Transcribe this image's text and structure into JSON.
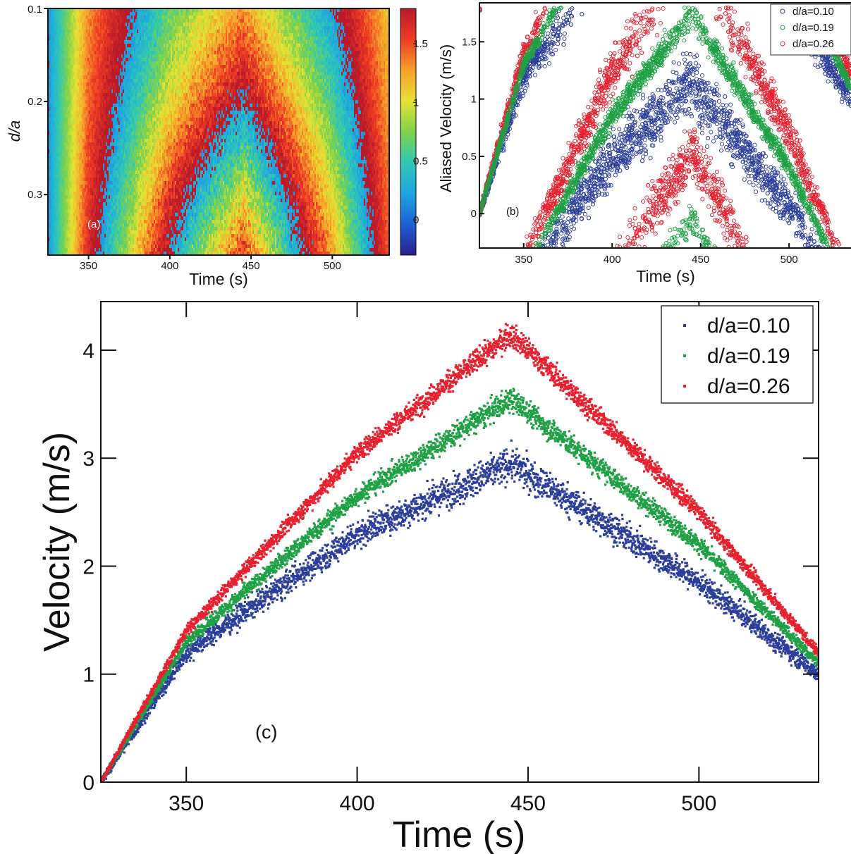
{
  "chart_data": [
    {
      "panel": "a",
      "type": "heatmap",
      "panel_label": "(a)",
      "xlabel": "Time (s)",
      "ylabel": "d/a",
      "xlim": [
        325,
        535
      ],
      "ylim": [
        0.1,
        0.365
      ],
      "y_inverted": true,
      "xticks": [
        350,
        400,
        450,
        500
      ],
      "yticks": [
        0.1,
        0.2,
        0.3
      ],
      "ytick_labels": [
        "0.1",
        "0.2",
        "0.3"
      ],
      "colorbar": {
        "range": [
          -0.3,
          1.8
        ],
        "ticks": [
          0,
          0.5,
          1,
          1.5
        ],
        "tick_labels": [
          "0",
          "0.5",
          "1",
          "1.5"
        ],
        "colormap": [
          "#2a1f8f",
          "#1d5fd6",
          "#1fa6e0",
          "#2fc8b5",
          "#7fd24a",
          "#e6e233",
          "#f6a02a",
          "#ef3b24",
          "#b81a2a"
        ]
      },
      "field": "aliased velocity, period 1.8 m/s"
    },
    {
      "panel": "b",
      "type": "scatter",
      "panel_label": "(b)",
      "xlabel": "Time (s)",
      "ylabel": "Aliased Velocity (m/s)",
      "xlim": [
        325,
        535
      ],
      "ylim": [
        -0.3,
        1.84
      ],
      "alias_period": 1.8,
      "xticks": [
        350,
        400,
        450,
        500
      ],
      "yticks": [
        0,
        0.5,
        1,
        1.5
      ],
      "ytick_labels": [
        "0",
        "0.5",
        "1",
        "1.5"
      ],
      "legend_position": "top-right",
      "series": [
        {
          "name": "d/a=0.10",
          "color": "#2b3f9a",
          "marker": "open-circle"
        },
        {
          "name": "d/a=0.19",
          "color": "#1fa044",
          "marker": "open-circle"
        },
        {
          "name": "d/a=0.26",
          "color": "#e8202e",
          "marker": "open-circle"
        }
      ]
    },
    {
      "panel": "c",
      "type": "scatter",
      "panel_label": "(c)",
      "xlabel": "Time (s)",
      "ylabel": "Velocity (m/s)",
      "xlim": [
        325,
        535
      ],
      "ylim": [
        0,
        4.45
      ],
      "xticks": [
        350,
        400,
        450,
        500
      ],
      "yticks": [
        0,
        1,
        2,
        3,
        4
      ],
      "ytick_labels": [
        "0",
        "1",
        "2",
        "3",
        "4"
      ],
      "legend_position": "top-right",
      "series": [
        {
          "name": "d/a=0.10",
          "color": "#2b3f9a",
          "marker": "dot",
          "x": [
            325,
            350,
            400,
            445,
            500,
            535
          ],
          "y": [
            0,
            1.2,
            2.3,
            2.95,
            1.85,
            1.0
          ]
        },
        {
          "name": "d/a=0.19",
          "color": "#1fa044",
          "marker": "dot",
          "x": [
            325,
            350,
            400,
            445,
            500,
            535
          ],
          "y": [
            0,
            1.3,
            2.65,
            3.55,
            2.2,
            1.1
          ]
        },
        {
          "name": "d/a=0.26",
          "color": "#e8202e",
          "marker": "dot",
          "x": [
            325,
            350,
            400,
            445,
            500,
            535
          ],
          "y": [
            0,
            1.4,
            3.05,
            4.15,
            2.5,
            1.2
          ]
        }
      ]
    }
  ]
}
